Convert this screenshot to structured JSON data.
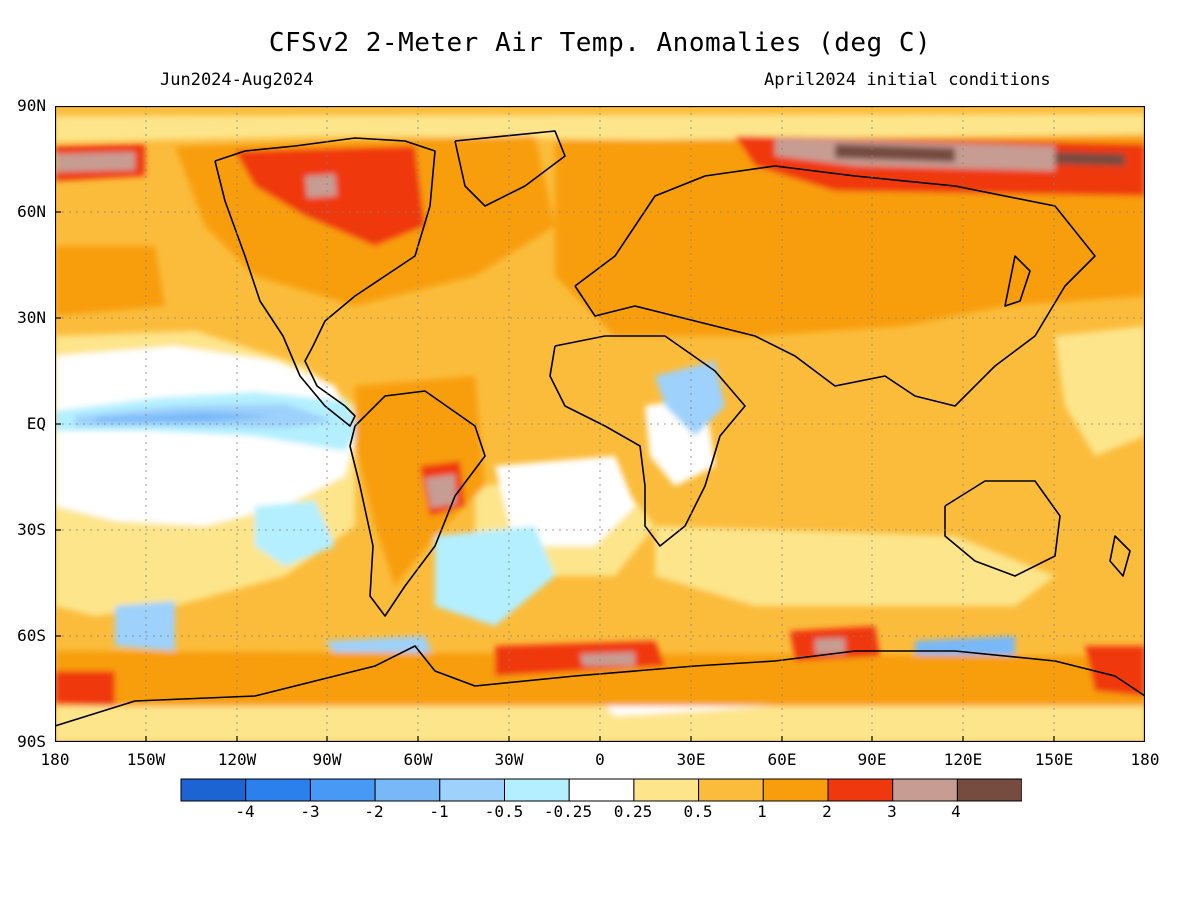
{
  "header": {
    "title": "CFSv2 2-Meter Air Temp. Anomalies (deg C)",
    "period": "Jun2024-Aug2024",
    "initial_conditions": "April2024 initial conditions"
  },
  "map": {
    "projection": "equirectangular",
    "lat_range": [
      -90,
      90
    ],
    "lon_range": [
      -180,
      180
    ],
    "gridlines": "dotted",
    "lat_labels": [
      "90N",
      "60N",
      "30N",
      "EQ",
      "30S",
      "60S",
      "90S"
    ],
    "lon_labels": [
      "180",
      "150W",
      "120W",
      "90W",
      "60W",
      "30W",
      "0",
      "30E",
      "60E",
      "90E",
      "120E",
      "150E",
      "180"
    ],
    "background_anomaly_color": "#fbbc3c",
    "regions": [
      {
        "name": "eastern tropical pacific cold tongue",
        "level": "-0.5",
        "lon": [
          -178,
          -110
        ],
        "lat": [
          -5,
          5
        ]
      },
      {
        "name": "south american warm core",
        "level": "4",
        "lon": [
          -62,
          -56
        ],
        "lat": [
          -26,
          -18
        ]
      },
      {
        "name": "siberian arctic warm",
        "level": "4",
        "lon": [
          70,
          180
        ],
        "lat": [
          68,
          78
        ]
      },
      {
        "name": "canadian arctic warm",
        "level": "3",
        "lon": [
          -110,
          -80
        ],
        "lat": [
          55,
          78
        ]
      },
      {
        "name": "southern ocean warm",
        "level": "3",
        "lon": [
          -20,
          20
        ],
        "lat": [
          -72,
          -64
        ]
      }
    ]
  },
  "colorbar": {
    "colors": [
      "#1c63d4",
      "#2c80ee",
      "#4799f5",
      "#78b8f8",
      "#9ed1fb",
      "#b4efff",
      "#ffffff",
      "#fde58b",
      "#fbbc3c",
      "#f89e0d",
      "#f0380e",
      "#c79c92",
      "#754c3f"
    ],
    "labels": [
      "-4",
      "-3",
      "-2",
      "-1",
      "-0.5",
      "-0.25",
      "0.25",
      "0.5",
      "1",
      "2",
      "3",
      "4"
    ]
  }
}
